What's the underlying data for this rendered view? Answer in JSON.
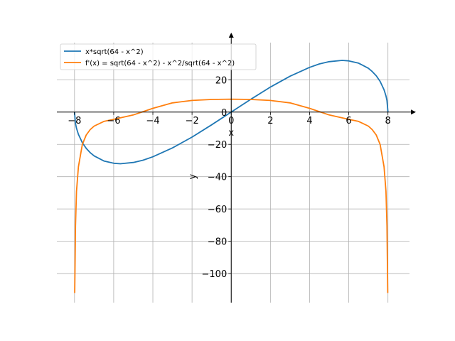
{
  "chart_data": {
    "type": "line",
    "xlabel": "x",
    "ylabel": "y",
    "xlim": [
      -8.9,
      9.1
    ],
    "ylim": [
      -118,
      43
    ],
    "grid": true,
    "legend_position": "top-left",
    "x_ticks": [
      -8,
      -6,
      -4,
      -2,
      0,
      2,
      4,
      6,
      8
    ],
    "y_ticks": [
      20,
      0,
      -20,
      -40,
      -60,
      -80,
      -100
    ],
    "x_tick_labels": [
      "−8",
      "−6",
      "−4",
      "−2",
      "0",
      "2",
      "4",
      "6",
      "8"
    ],
    "y_tick_labels": [
      "20",
      "0",
      "−20",
      "−40",
      "−60",
      "−80",
      "−100"
    ],
    "colors": {
      "series1": "#1f77b4",
      "series2": "#ff7f0e",
      "grid": "#b0b0b0"
    },
    "series": [
      {
        "name": "x*sqrt(64 - x^2)",
        "x": [
          -8,
          -7.95,
          -7.9,
          -7.8,
          -7.6,
          -7.4,
          -7.2,
          -7,
          -6.5,
          -6,
          -5.66,
          -5,
          -4.5,
          -4,
          -3,
          -2,
          -1,
          0,
          1,
          2,
          3,
          4,
          4.5,
          5,
          5.66,
          6,
          6.5,
          7,
          7.2,
          7.4,
          7.6,
          7.8,
          7.9,
          7.95,
          8
        ],
        "y": [
          0,
          -7.1,
          -10.0,
          -13.8,
          -19.0,
          -22.5,
          -25.1,
          -27.1,
          -30.3,
          -31.7,
          -32.0,
          -31.2,
          -29.8,
          -27.7,
          -22.2,
          -15.5,
          -7.9,
          0,
          7.9,
          15.5,
          22.2,
          27.7,
          29.8,
          31.2,
          32.0,
          31.7,
          30.3,
          27.1,
          25.1,
          22.5,
          19.0,
          13.8,
          10.0,
          7.1,
          0
        ]
      },
      {
        "name": "f'(x) = sqrt(64 - x^2) - x^2/sqrt(64 - x^2)",
        "x": [
          -7.99,
          -7.95,
          -7.9,
          -7.8,
          -7.6,
          -7.4,
          -7.2,
          -7,
          -6.5,
          -6,
          -5,
          -4,
          -3,
          -2,
          -1,
          0,
          1,
          2,
          3,
          4,
          5,
          6,
          6.5,
          7,
          7.2,
          7.4,
          7.6,
          7.8,
          7.9,
          7.95,
          7.99
        ],
        "y": [
          -112,
          -70.4,
          -49.1,
          -33.9,
          -20.1,
          -14.2,
          -10.9,
          -8.7,
          -5.8,
          -4.5,
          -1.8,
          2.3,
          5.7,
          7.2,
          7.8,
          8.0,
          7.8,
          7.2,
          5.7,
          2.3,
          -1.8,
          -4.5,
          -5.8,
          -8.7,
          -10.9,
          -14.2,
          -20.1,
          -33.9,
          -49.1,
          -70.4,
          -112
        ]
      }
    ]
  }
}
